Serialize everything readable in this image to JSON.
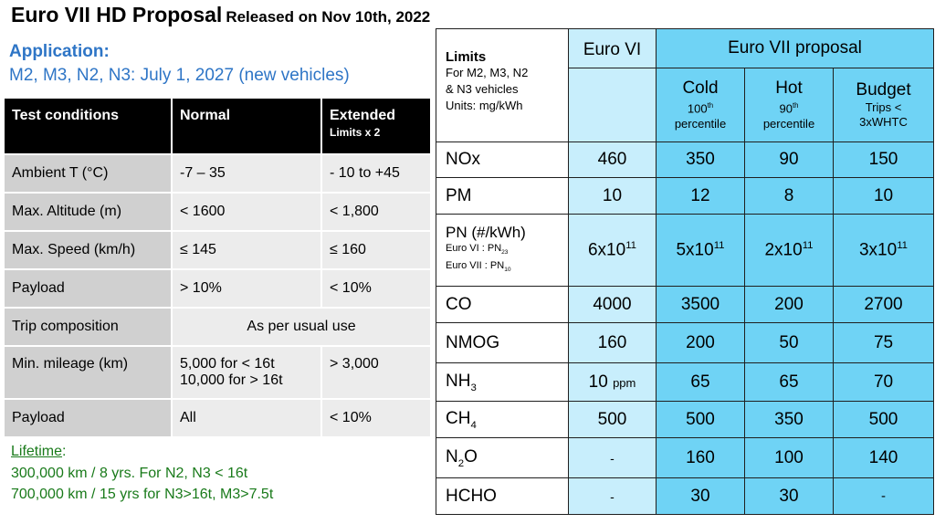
{
  "title": {
    "main": "Euro VII HD Proposal",
    "sub": "Released on Nov 10th, 2022"
  },
  "application": {
    "heading": "Application:",
    "text": "M2, M3, N2, N3: July 1, 2027 (new vehicles)"
  },
  "test_conditions": {
    "headers": {
      "c1": "Test conditions",
      "c2": "Normal",
      "c3": "Extended",
      "c3_sub": "Limits x 2"
    },
    "rows": [
      {
        "label": "Ambient T (°C)",
        "normal": "-7 – 35",
        "extended": "- 10 to +45"
      },
      {
        "label": "Max. Altitude (m)",
        "normal": "< 1600",
        "extended": "< 1,800"
      },
      {
        "label": "Max. Speed (km/h)",
        "normal": "≤ 145",
        "extended": "≤ 160"
      },
      {
        "label": "Payload",
        "normal": "> 10%",
        "extended": "< 10%"
      },
      {
        "label": "Trip composition",
        "merged": "As per usual use"
      },
      {
        "label": "Min. mileage (km)",
        "normal_l1": "5,000 for < 16t",
        "normal_l2": "10,000 for > 16t",
        "extended": "> 3,000"
      },
      {
        "label": "Payload",
        "normal": "All",
        "extended": "< 10%"
      }
    ]
  },
  "lifetime": {
    "heading": "Lifetime",
    "lines": [
      "300,000 km / 8 yrs. For N2, N3 < 16t",
      "700,000 km / 15 yrs for N3>16t, M3>7.5t"
    ]
  },
  "limits": {
    "header": {
      "title": "Limits",
      "note": [
        "For M2, M3, N2",
        "& N3 vehicles",
        "Units: mg/kWh"
      ],
      "euro6": "Euro VI",
      "euro7": "Euro VII proposal",
      "cold": "Cold",
      "cold_sub_num": "100",
      "cold_sub_sup": "th",
      "cold_sub_word": "percentile",
      "hot": "Hot",
      "hot_sub_num": "90",
      "hot_sub_sup": "th",
      "hot_sub_word": "percentile",
      "budget": "Budget",
      "budget_sub1": "Trips <",
      "budget_sub2": "3xWHTC"
    },
    "rows": {
      "nox": {
        "label": "NOx",
        "e6": "460",
        "cold": "350",
        "hot": "90",
        "budget": "150"
      },
      "pm": {
        "label": "PM",
        "e6": "10",
        "cold": "12",
        "hot": "8",
        "budget": "10"
      },
      "pn": {
        "label": "PN (#/kWh)",
        "note1": "Euro VI : PN",
        "note1_sub": "23",
        "note2": "Euro VII : PN",
        "note2_sub": "10",
        "e6_base": "6x10",
        "cold_base": "5x10",
        "hot_base": "2x10",
        "budget_base": "3x10",
        "exp": "11"
      },
      "co": {
        "label": "CO",
        "e6": "4000",
        "cold": "3500",
        "hot": "200",
        "budget": "2700"
      },
      "nmog": {
        "label": "NMOG",
        "e6": "160",
        "cold": "200",
        "hot": "50",
        "budget": "75"
      },
      "nh3": {
        "label": "NH",
        "label_sub": "3",
        "e6": "10",
        "e6_unit": "ppm",
        "cold": "65",
        "hot": "65",
        "budget": "70"
      },
      "ch4": {
        "label": "CH",
        "label_sub": "4",
        "e6": "500",
        "cold": "500",
        "hot": "350",
        "budget": "500"
      },
      "n2o": {
        "label": "N",
        "label_sub": "2",
        "label_tail": "O",
        "e6": "-",
        "cold": "160",
        "hot": "100",
        "budget": "140"
      },
      "hcho": {
        "label": "HCHO",
        "e6": "-",
        "cold": "30",
        "hot": "30",
        "budget": "-"
      }
    }
  },
  "colors": {
    "blue_text": "#2e75c6",
    "green_text": "#197a1a",
    "euro6_fill": "#c8eefc",
    "euro7_fill": "#6fd3f5"
  }
}
